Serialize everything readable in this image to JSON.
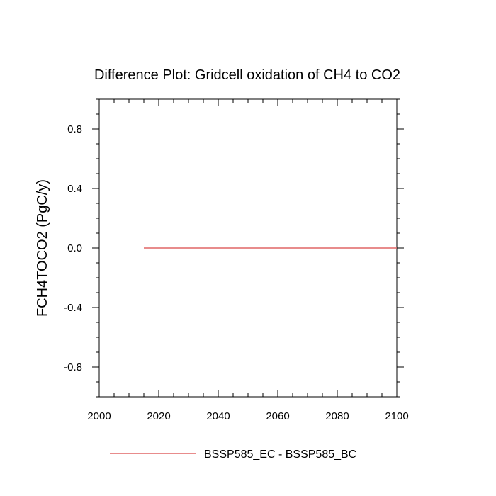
{
  "chart_data": {
    "type": "line",
    "title": "Difference Plot: Gridcell oxidation of CH4 to CO2",
    "xlabel": "",
    "ylabel": "FCH4TOCO2  (PgC/y)",
    "xlim": [
      2000,
      2100
    ],
    "ylim": [
      -1,
      1
    ],
    "x_ticks": [
      2000,
      2020,
      2040,
      2060,
      2080,
      2100
    ],
    "x_tick_labels": [
      "2000",
      "2020",
      "2040",
      "2060",
      "2080",
      "2100"
    ],
    "y_ticks": [
      -0.8,
      -0.4,
      0.0,
      0.4,
      0.8
    ],
    "y_tick_labels": [
      "-0.8",
      "-0.4",
      "0.0",
      "0.4",
      "0.8"
    ],
    "grid": false,
    "legend_position": "bottom",
    "series": [
      {
        "name": "BSSP585_EC - BSSP585_BC",
        "color": "#e06666",
        "x": [
          2015,
          2100
        ],
        "y": [
          0.0,
          0.0
        ]
      }
    ]
  }
}
